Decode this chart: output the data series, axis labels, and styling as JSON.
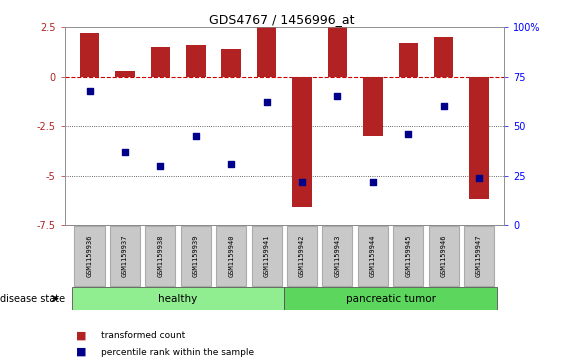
{
  "title": "GDS4767 / 1456996_at",
  "samples": [
    "GSM1159936",
    "GSM1159937",
    "GSM1159938",
    "GSM1159939",
    "GSM1159940",
    "GSM1159941",
    "GSM1159942",
    "GSM1159943",
    "GSM1159944",
    "GSM1159945",
    "GSM1159946",
    "GSM1159947"
  ],
  "transformed_count": [
    2.2,
    0.3,
    1.5,
    1.6,
    1.4,
    2.5,
    -6.6,
    2.5,
    -3.0,
    1.7,
    2.0,
    -6.2
  ],
  "percentile_rank": [
    68,
    37,
    30,
    45,
    31,
    62,
    22,
    65,
    22,
    46,
    60,
    24
  ],
  "percentile_scale": [
    0,
    25,
    50,
    75,
    100
  ],
  "left_yticks": [
    2.5,
    0.0,
    -2.5,
    -5.0,
    -7.5
  ],
  "ylim": [
    -7.5,
    2.5
  ],
  "n_healthy": 6,
  "n_tumor": 6,
  "bar_color": "#B22222",
  "dot_color": "#00008B",
  "healthy_color_light": "#C8F0C8",
  "healthy_color": "#90EE90",
  "tumor_color": "#5CD65C",
  "group_label_healthy": "healthy",
  "group_label_tumor": "pancreatic tumor",
  "disease_state_label": "disease state",
  "legend_bar_label": "transformed count",
  "legend_dot_label": "percentile rank within the sample",
  "zero_line_color": "#CC0000",
  "dotted_line_color": "#333333",
  "label_box_color": "#C8C8C8",
  "label_box_edge": "#AAAAAA"
}
